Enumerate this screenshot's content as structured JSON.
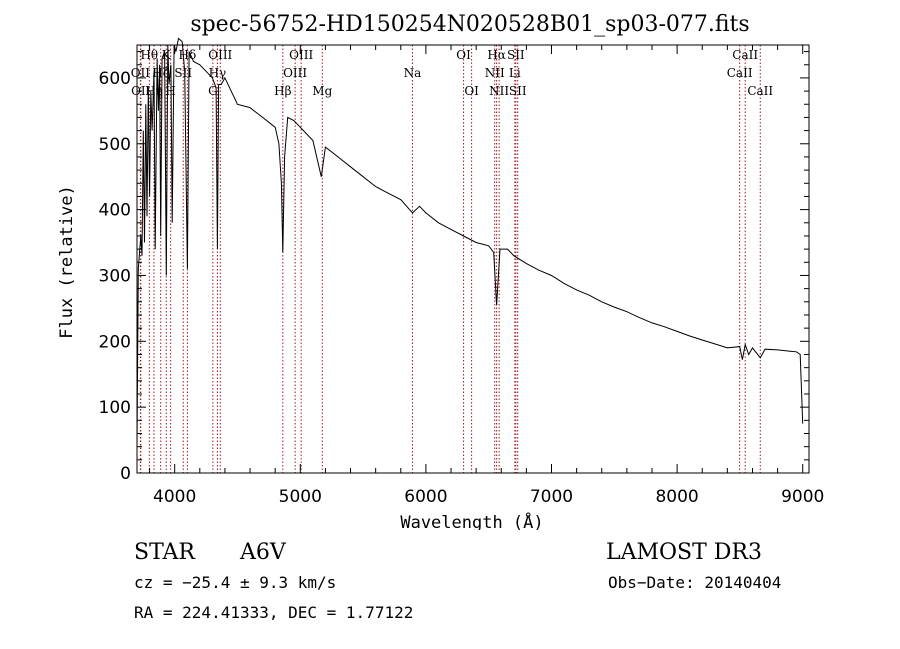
{
  "chart_data": {
    "type": "line",
    "title": "spec-56752-HD150254N020528B01_sp03-077.fits",
    "xlabel": "Wavelength (Å)",
    "ylabel": "Flux (relative)",
    "xlim": [
      3700,
      9050
    ],
    "ylim": [
      0,
      650
    ],
    "xticks": [
      4000,
      5000,
      6000,
      7000,
      8000,
      9000
    ],
    "yticks": [
      0,
      100,
      200,
      300,
      400,
      500,
      600
    ],
    "grid": false,
    "series": [
      {
        "name": "flux",
        "x": [
          3700,
          3710,
          3730,
          3740,
          3750,
          3760,
          3770,
          3780,
          3790,
          3800,
          3810,
          3820,
          3835,
          3845,
          3860,
          3870,
          3880,
          3889,
          3900,
          3920,
          3933,
          3945,
          3955,
          3970,
          3980,
          3995,
          4010,
          4030,
          4060,
          4080,
          4101,
          4115,
          4150,
          4200,
          4250,
          4300,
          4330,
          4340,
          4350,
          4370,
          4400,
          4500,
          4600,
          4700,
          4800,
          4830,
          4850,
          4861,
          4875,
          4900,
          4950,
          5000,
          5100,
          5167,
          5200,
          5300,
          5400,
          5500,
          5600,
          5700,
          5800,
          5893,
          5950,
          6000,
          6100,
          6200,
          6300,
          6400,
          6500,
          6540,
          6563,
          6590,
          6650,
          6700,
          6800,
          6900,
          7000,
          7100,
          7200,
          7300,
          7400,
          7500,
          7600,
          7700,
          7800,
          7900,
          8000,
          8100,
          8200,
          8300,
          8400,
          8498,
          8520,
          8542,
          8570,
          8600,
          8662,
          8700,
          8800,
          8900,
          8950,
          8980,
          9000
        ],
        "values": [
          40,
          310,
          360,
          330,
          520,
          350,
          560,
          390,
          585,
          420,
          580,
          520,
          610,
          340,
          630,
          550,
          620,
          360,
          630,
          640,
          300,
          650,
          590,
          620,
          380,
          650,
          640,
          660,
          655,
          610,
          310,
          640,
          625,
          620,
          610,
          600,
          585,
          340,
          590,
          590,
          600,
          560,
          555,
          540,
          525,
          500,
          440,
          335,
          480,
          540,
          535,
          525,
          505,
          450,
          495,
          480,
          465,
          450,
          435,
          425,
          415,
          395,
          405,
          395,
          380,
          370,
          360,
          350,
          345,
          335,
          255,
          340,
          340,
          330,
          318,
          308,
          300,
          288,
          278,
          270,
          260,
          252,
          245,
          236,
          228,
          222,
          215,
          208,
          202,
          196,
          190,
          192,
          172,
          195,
          180,
          190,
          175,
          188,
          187,
          185,
          184,
          180,
          75
        ]
      }
    ],
    "line_markers": [
      {
        "label": "Hθ",
        "x": 3798,
        "row": 1
      },
      {
        "label": "OII",
        "x": 3727,
        "row": 2
      },
      {
        "label": "OII",
        "x": 3730,
        "row": 3
      },
      {
        "label": "Hη",
        "x": 3835,
        "row": 3
      },
      {
        "label": "Hζ",
        "x": 3889,
        "row": 2
      },
      {
        "label": "SII",
        "x": 4068,
        "row": 2
      },
      {
        "label": "K",
        "x": 3933,
        "row": 1
      },
      {
        "label": "H",
        "x": 3968,
        "row": 3
      },
      {
        "label": "Hδ",
        "x": 4101,
        "row": 1
      },
      {
        "label": "G",
        "x": 4304,
        "row": 3
      },
      {
        "label": "Hγ",
        "x": 4340,
        "row": 2
      },
      {
        "label": "OIII",
        "x": 4363,
        "row": 1
      },
      {
        "label": "Hβ",
        "x": 4861,
        "row": 3
      },
      {
        "label": "OIII",
        "x": 4959,
        "row": 2
      },
      {
        "label": "OIII",
        "x": 5007,
        "row": 1
      },
      {
        "label": "Mg",
        "x": 5175,
        "row": 3
      },
      {
        "label": "Na",
        "x": 5893,
        "row": 2
      },
      {
        "label": "OI",
        "x": 6300,
        "row": 1
      },
      {
        "label": "OI",
        "x": 6364,
        "row": 3
      },
      {
        "label": "NII",
        "x": 6548,
        "row": 2
      },
      {
        "label": "Hα",
        "x": 6563,
        "row": 1
      },
      {
        "label": "NII",
        "x": 6583,
        "row": 3
      },
      {
        "label": "Li",
        "x": 6708,
        "row": 2
      },
      {
        "label": "SII",
        "x": 6716,
        "row": 1
      },
      {
        "label": "SII",
        "x": 6731,
        "row": 3
      },
      {
        "label": "CaII",
        "x": 8498,
        "row": 2
      },
      {
        "label": "CaII",
        "x": 8542,
        "row": 1
      },
      {
        "label": "CaII",
        "x": 8662,
        "row": 3
      }
    ]
  },
  "info": {
    "object_class": "STAR",
    "subclass": "A6V",
    "survey": "LAMOST DR3",
    "cz": "cz = −25.4 ± 9.3 km/s",
    "obs_date": "Obs−Date: 20140404",
    "coords": "RA = 224.41333, DEC =    1.77122"
  },
  "colors": {
    "spectrum": "#000000",
    "marker": "#a0181c",
    "axis": "#000000"
  }
}
